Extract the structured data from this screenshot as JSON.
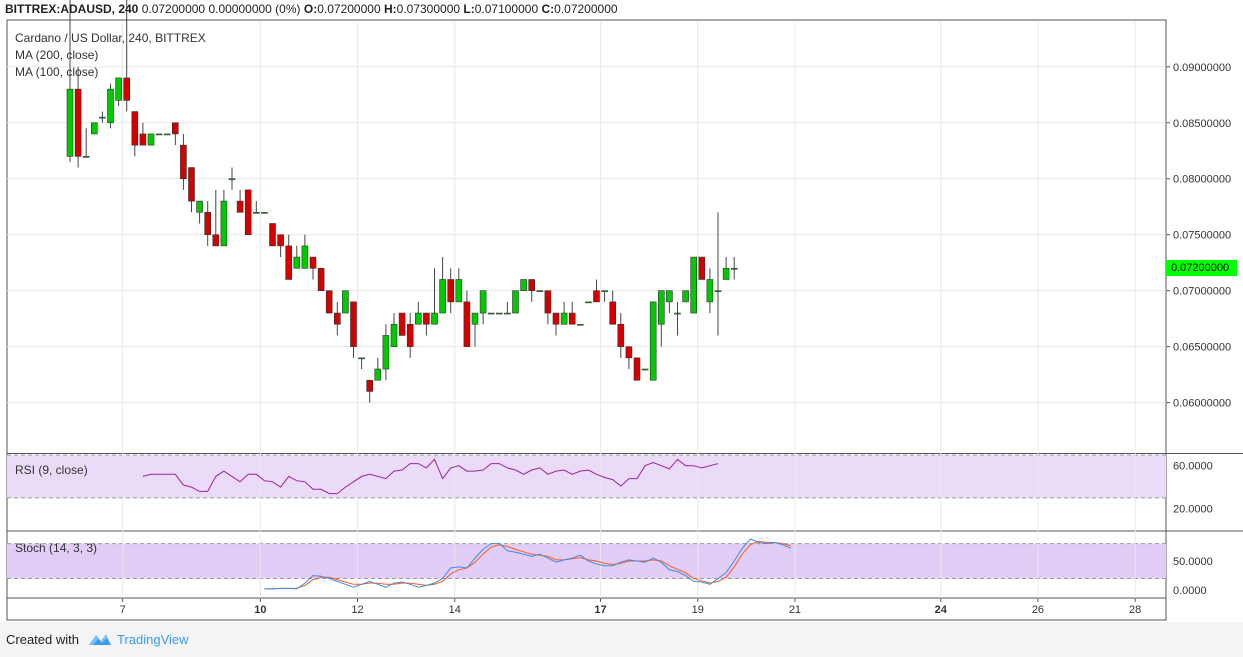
{
  "header": {
    "symbol": "BITTREX:ADAUSD, 240",
    "price": "0.07200000",
    "change": "0.00000000 (0%)",
    "o_label": "O:",
    "o": "0.07200000",
    "h_label": "H:",
    "h": "0.07300000",
    "l_label": "L:",
    "l": "0.07100000",
    "c_label": "C:",
    "c": "0.07200000"
  },
  "legend": {
    "title": "Cardano / US Dollar, 240, BITTREX",
    "ma200": "MA (200, close)",
    "ma100": "MA (100, close)",
    "rsi": "RSI (9, close)",
    "stoch": "Stoch (14, 3, 3)"
  },
  "price_tag": "0.07200000",
  "footer": {
    "created": "Created with",
    "brand": "TradingView"
  },
  "colors": {
    "up": "#00c900",
    "down": "#d40000",
    "rsi": "#a020a0",
    "stoch_k": "#3b8de6",
    "stoch_d": "#ff5a1f",
    "indicator_band": "#eadcf8",
    "price_tag": "#00ff00"
  },
  "chart_data": [
    {
      "type": "candlestick",
      "ylim": [
        0.0555,
        0.094
      ],
      "y_ticks": [
        "0.06000000",
        "0.06500000",
        "0.07000000",
        "0.07500000",
        "0.08000000",
        "0.08500000",
        "0.09000000"
      ],
      "y_tick_values": [
        0.06,
        0.065,
        0.07,
        0.075,
        0.08,
        0.085,
        0.09
      ],
      "x_ticks": [
        {
          "label": "7",
          "bar": 6.5
        },
        {
          "label": "10",
          "bar": 23.5
        },
        {
          "label": "12",
          "bar": 35.5
        },
        {
          "label": "14",
          "bar": 47.5
        },
        {
          "label": "17",
          "bar": 65.5
        },
        {
          "label": "19",
          "bar": 77.5
        },
        {
          "label": "21",
          "bar": 89.5
        },
        {
          "label": "24",
          "bar": 107.5
        },
        {
          "label": "26",
          "bar": 119.5
        },
        {
          "label": "28",
          "bar": 131.5
        }
      ],
      "candles": [
        [
          0.082,
          0.0995,
          0.0815,
          0.088
        ],
        [
          0.088,
          0.09,
          0.081,
          0.082
        ],
        [
          0.082,
          0.0845,
          0.082,
          0.082
        ],
        [
          0.084,
          0.085,
          0.084,
          0.085
        ],
        [
          0.0855,
          0.086,
          0.085,
          0.0855
        ],
        [
          0.085,
          0.0885,
          0.0845,
          0.088
        ],
        [
          0.087,
          0.089,
          0.0865,
          0.089
        ],
        [
          0.089,
          0.0995,
          0.086,
          0.087
        ],
        [
          0.086,
          0.086,
          0.082,
          0.083
        ],
        [
          0.084,
          0.085,
          0.083,
          0.083
        ],
        [
          0.083,
          0.084,
          0.083,
          0.084
        ],
        [
          0.084,
          0.084,
          0.084,
          0.084
        ],
        [
          0.084,
          0.084,
          0.084,
          0.084
        ],
        [
          0.085,
          0.085,
          0.083,
          0.084
        ],
        [
          0.083,
          0.084,
          0.079,
          0.08
        ],
        [
          0.081,
          0.081,
          0.077,
          0.078
        ],
        [
          0.077,
          0.078,
          0.076,
          0.078
        ],
        [
          0.077,
          0.078,
          0.074,
          0.075
        ],
        [
          0.075,
          0.079,
          0.074,
          0.074
        ],
        [
          0.074,
          0.079,
          0.074,
          0.078
        ],
        [
          0.08,
          0.081,
          0.079,
          0.08
        ],
        [
          0.078,
          0.079,
          0.077,
          0.077
        ],
        [
          0.079,
          0.079,
          0.075,
          0.075
        ],
        [
          0.077,
          0.078,
          0.077,
          0.077
        ],
        [
          0.077,
          0.077,
          0.077,
          0.077
        ],
        [
          0.076,
          0.076,
          0.074,
          0.074
        ],
        [
          0.075,
          0.075,
          0.073,
          0.074
        ],
        [
          0.074,
          0.075,
          0.071,
          0.071
        ],
        [
          0.072,
          0.074,
          0.072,
          0.073
        ],
        [
          0.072,
          0.075,
          0.072,
          0.074
        ],
        [
          0.073,
          0.073,
          0.071,
          0.072
        ],
        [
          0.072,
          0.072,
          0.07,
          0.07
        ],
        [
          0.07,
          0.07,
          0.068,
          0.068
        ],
        [
          0.068,
          0.069,
          0.066,
          0.067
        ],
        [
          0.068,
          0.07,
          0.068,
          0.07
        ],
        [
          0.069,
          0.069,
          0.064,
          0.065
        ],
        [
          0.064,
          0.064,
          0.063,
          0.064
        ],
        [
          0.062,
          0.062,
          0.06,
          0.061
        ],
        [
          0.062,
          0.064,
          0.062,
          0.063
        ],
        [
          0.063,
          0.067,
          0.062,
          0.066
        ],
        [
          0.065,
          0.068,
          0.065,
          0.067
        ],
        [
          0.068,
          0.068,
          0.066,
          0.066
        ],
        [
          0.067,
          0.068,
          0.064,
          0.065
        ],
        [
          0.067,
          0.069,
          0.067,
          0.068
        ],
        [
          0.068,
          0.068,
          0.066,
          0.067
        ],
        [
          0.067,
          0.072,
          0.067,
          0.068
        ],
        [
          0.068,
          0.073,
          0.068,
          0.071
        ],
        [
          0.071,
          0.072,
          0.068,
          0.069
        ],
        [
          0.069,
          0.072,
          0.069,
          0.071
        ],
        [
          0.069,
          0.07,
          0.065,
          0.065
        ],
        [
          0.067,
          0.068,
          0.065,
          0.068
        ],
        [
          0.068,
          0.07,
          0.067,
          0.07
        ],
        [
          0.068,
          0.068,
          0.068,
          0.068
        ],
        [
          0.068,
          0.068,
          0.068,
          0.068
        ],
        [
          0.068,
          0.069,
          0.068,
          0.068
        ],
        [
          0.068,
          0.07,
          0.068,
          0.07
        ],
        [
          0.07,
          0.071,
          0.07,
          0.071
        ],
        [
          0.071,
          0.071,
          0.069,
          0.07
        ],
        [
          0.07,
          0.07,
          0.07,
          0.07
        ],
        [
          0.07,
          0.07,
          0.067,
          0.068
        ],
        [
          0.068,
          0.068,
          0.066,
          0.067
        ],
        [
          0.067,
          0.069,
          0.067,
          0.068
        ],
        [
          0.068,
          0.069,
          0.067,
          0.067
        ],
        [
          0.067,
          0.067,
          0.067,
          0.067
        ],
        [
          0.069,
          0.069,
          0.069,
          0.069
        ],
        [
          0.07,
          0.071,
          0.069,
          0.069
        ],
        [
          0.07,
          0.07,
          0.069,
          0.07
        ],
        [
          0.069,
          0.07,
          0.067,
          0.067
        ],
        [
          0.067,
          0.068,
          0.064,
          0.065
        ],
        [
          0.065,
          0.065,
          0.063,
          0.064
        ],
        [
          0.064,
          0.064,
          0.062,
          0.062
        ],
        [
          0.063,
          0.063,
          0.063,
          0.063
        ],
        [
          0.062,
          0.069,
          0.062,
          0.069
        ],
        [
          0.067,
          0.07,
          0.065,
          0.07
        ],
        [
          0.069,
          0.07,
          0.068,
          0.07
        ],
        [
          0.068,
          0.069,
          0.066,
          0.068
        ],
        [
          0.069,
          0.07,
          0.069,
          0.07
        ],
        [
          0.068,
          0.073,
          0.068,
          0.073
        ],
        [
          0.073,
          0.073,
          0.071,
          0.071
        ],
        [
          0.069,
          0.072,
          0.068,
          0.071
        ],
        [
          0.07,
          0.077,
          0.066,
          0.07
        ],
        [
          0.071,
          0.073,
          0.071,
          0.072
        ],
        [
          0.072,
          0.073,
          0.071,
          0.072
        ]
      ]
    },
    {
      "type": "line",
      "name": "RSI (9, close)",
      "ylim": [
        0,
        70
      ],
      "y_ticks": [
        "20.0000",
        "60.0000"
      ],
      "y_tick_values": [
        20,
        60
      ],
      "band": [
        30,
        70
      ],
      "start_bar": 9,
      "values": [
        50,
        52,
        52,
        52,
        52,
        42,
        40,
        36,
        36,
        50,
        55,
        50,
        45,
        52,
        52,
        46,
        45,
        40,
        50,
        46,
        45,
        38,
        38,
        34,
        34,
        40,
        45,
        50,
        52,
        50,
        48,
        55,
        56,
        62,
        62,
        58,
        66,
        48,
        58,
        60,
        55,
        55,
        56,
        62,
        62,
        58,
        56,
        52,
        56,
        58,
        52,
        55,
        56,
        52,
        55,
        56,
        52,
        49,
        47,
        41,
        48,
        48,
        60,
        63,
        60,
        57,
        66,
        60,
        60,
        58,
        60,
        62
      ]
    },
    {
      "type": "line",
      "name": "Stoch (14, 3, 3)",
      "ylim": [
        -5,
        100
      ],
      "y_ticks": [
        "0.0000",
        "50.0000"
      ],
      "y_tick_values": [
        0,
        50
      ],
      "band": [
        20,
        80
      ],
      "start_bar": 24,
      "k": [
        2,
        2,
        3,
        3,
        2,
        12,
        25,
        24,
        20,
        15,
        10,
        5,
        10,
        15,
        10,
        5,
        12,
        14,
        10,
        5,
        8,
        12,
        20,
        38,
        40,
        38,
        55,
        70,
        80,
        80,
        68,
        65,
        62,
        58,
        62,
        55,
        48,
        52,
        55,
        60,
        50,
        45,
        42,
        42,
        48,
        52,
        50,
        48,
        55,
        48,
        35,
        32,
        25,
        15,
        14,
        10,
        20,
        30,
        50,
        72,
        88,
        82,
        80,
        82,
        78,
        72
      ],
      "d": [
        2,
        2,
        3,
        3,
        3,
        8,
        18,
        22,
        22,
        18,
        14,
        10,
        10,
        12,
        12,
        10,
        10,
        12,
        12,
        10,
        8,
        10,
        15,
        28,
        35,
        38,
        48,
        62,
        74,
        78,
        75,
        70,
        66,
        62,
        60,
        58,
        52,
        52,
        54,
        56,
        52,
        50,
        46,
        44,
        46,
        50,
        50,
        50,
        52,
        50,
        42,
        36,
        30,
        20,
        16,
        12,
        15,
        22,
        40,
        62,
        78,
        84,
        82,
        82,
        80,
        76
      ]
    }
  ]
}
